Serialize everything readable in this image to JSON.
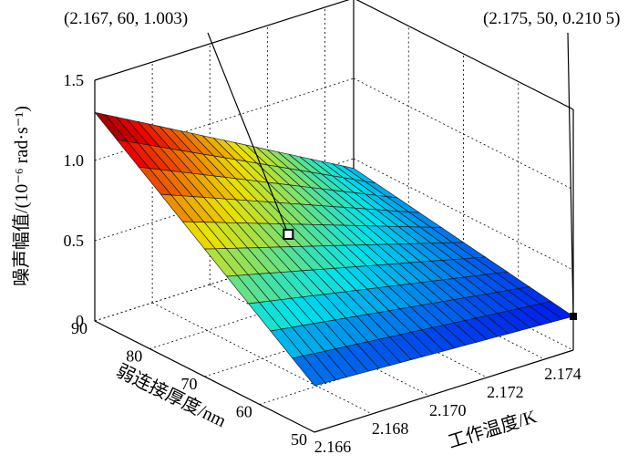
{
  "chart_data": {
    "type": "surface",
    "title": "",
    "xlabel": "工作温度/K",
    "ylabel": "弱连接厚度/nm",
    "zlabel": "噪声幅值/(10⁻⁶ rad·s⁻¹)",
    "x_ticks": [
      "2.166",
      "2.168",
      "2.170",
      "2.172",
      "2.174"
    ],
    "y_ticks": [
      "50",
      "60",
      "70",
      "80",
      "90"
    ],
    "z_ticks": [
      "0",
      "0.5",
      "1.0",
      "1.5"
    ],
    "xlim": [
      2.166,
      2.175
    ],
    "ylim": [
      50,
      90
    ],
    "zlim": [
      0,
      1.5
    ],
    "grid": true,
    "surface_corners": [
      {
        "x": 2.166,
        "y": 90,
        "z": 1.3
      },
      {
        "x": 2.166,
        "y": 50,
        "z": 0.29
      },
      {
        "x": 2.175,
        "y": 90,
        "z": 0.44
      },
      {
        "x": 2.175,
        "y": 50,
        "z": 0.2105
      }
    ],
    "annotations": [
      {
        "text": "(2.167, 60, 1.003)",
        "x": 2.167,
        "y": 60,
        "z": 1.003
      },
      {
        "text": "(2.175, 50, 0.210 5)",
        "x": 2.175,
        "y": 50,
        "z": 0.2105
      }
    ]
  }
}
